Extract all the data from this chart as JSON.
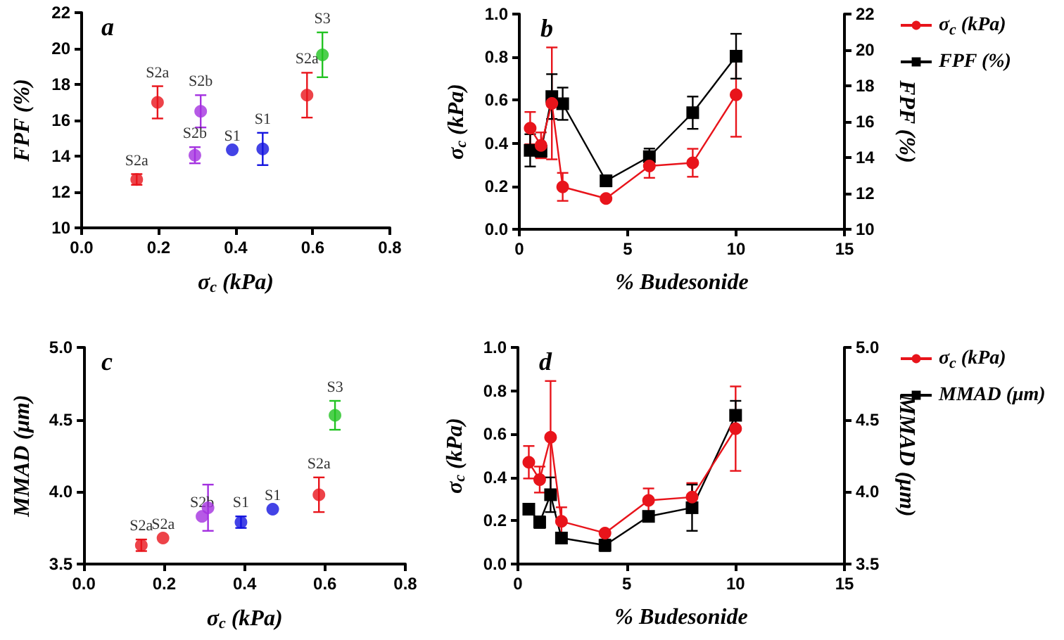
{
  "chart_data": [
    {
      "type": "scatter",
      "title": "a",
      "xlabel": "σ$_{c}$ (kPa)",
      "ylabel": "FPF (%)",
      "x": [
        0.143,
        0.197,
        0.294,
        0.309,
        0.391,
        0.47,
        0.585,
        0.625
      ],
      "values": [
        12.7,
        17.0,
        14.05,
        16.5,
        14.35,
        14.4,
        17.4,
        19.65
      ],
      "colors": [
        "#e8141b",
        "#e8141b",
        "#a431e0",
        "#a431e0",
        "#1414e0",
        "#1414e0",
        "#e8141b",
        "#22c322"
      ],
      "errors": [
        0.3,
        0.9,
        0.45,
        0.9,
        null,
        0.9,
        1.25,
        1.25
      ],
      "xlim": [
        0,
        0.8
      ],
      "xticks": [
        {
          "value": 0,
          "label": "0.0"
        },
        0.2,
        0.4,
        0.6,
        0.8
      ],
      "ylim": [
        10,
        22
      ],
      "yticks": [
        10,
        12,
        14,
        16,
        18,
        20,
        22
      ],
      "marker": "circle",
      "annotations": [
        {
          "text": "S2a",
          "x": 0.143,
          "y": 12.7
        },
        {
          "text": "S2a",
          "x": 0.197,
          "y": 17.0
        },
        {
          "text": "S2b",
          "x": 0.294,
          "y": 14.05
        },
        {
          "text": "S2b",
          "x": 0.309,
          "y": 16.5
        },
        {
          "text": "S1",
          "x": 0.391,
          "y": 14.35
        },
        {
          "text": "S1",
          "x": 0.47,
          "y": 14.4
        },
        {
          "text": "S2a",
          "x": 0.585,
          "y": 17.4
        },
        {
          "text": "S3",
          "x": 0.625,
          "y": 19.65
        }
      ]
    },
    {
      "type": "line",
      "title": "b",
      "xlabel": "% Budesonide",
      "ylabel": "σ$_{c}$ (kPa)",
      "y2label": "FPF (%)",
      "x": [
        0.5,
        1,
        1.5,
        2,
        4,
        6,
        8,
        10
      ],
      "series": [
        {
          "name": "σ$_{c}$ (kPa)",
          "color": "#e8141b",
          "marker": "circle",
          "values": [
            0.47,
            0.39,
            0.585,
            0.197,
            0.143,
            0.294,
            0.309,
            0.625
          ],
          "errors": [
            0.075,
            0.06,
            0.26,
            0.065,
            null,
            0.055,
            0.065,
            0.195
          ]
        },
        {
          "name": "FPF (%)",
          "color": "#000000",
          "marker": "square",
          "axis": "y2",
          "values": [
            14.4,
            14.35,
            17.4,
            17.0,
            12.7,
            14.05,
            16.5,
            19.65
          ],
          "errors": [
            0.9,
            null,
            1.25,
            0.9,
            0.3,
            0.45,
            0.9,
            1.25
          ]
        }
      ],
      "xlim": [
        0,
        15
      ],
      "xticks": [
        0,
        5,
        10,
        15
      ],
      "ylim": [
        0,
        1
      ],
      "yticks": [
        {
          "value": 0,
          "label": "0.0"
        },
        0.2,
        0.4,
        0.6,
        0.8,
        {
          "value": 1,
          "label": "1.0"
        }
      ],
      "y2lim": [
        10,
        22
      ],
      "y2ticks": [
        10,
        12,
        14,
        16,
        18,
        20,
        22
      ],
      "legend": "right"
    },
    {
      "type": "scatter",
      "title": "c",
      "xlabel": "σ$_{c}$ (kPa)",
      "ylabel": "MMAD (μm)",
      "x": [
        0.143,
        0.197,
        0.294,
        0.309,
        0.391,
        0.47,
        0.585,
        0.625
      ],
      "values": [
        3.63,
        3.68,
        3.83,
        3.89,
        3.79,
        3.88,
        3.98,
        4.53
      ],
      "colors": [
        "#e8141b",
        "#e8141b",
        "#a431e0",
        "#a431e0",
        "#1414e0",
        "#1414e0",
        "#e8141b",
        "#22c322"
      ],
      "errors": [
        0.04,
        null,
        null,
        0.16,
        0.04,
        null,
        0.12,
        0.1
      ],
      "xlim": [
        0,
        0.8
      ],
      "xticks": [
        {
          "value": 0,
          "label": "0.0"
        },
        0.2,
        0.4,
        0.6,
        0.8
      ],
      "ylim": [
        3.5,
        5
      ],
      "yticks": [
        3.5,
        {
          "value": 4,
          "label": "4.0"
        },
        4.5,
        {
          "value": 5,
          "label": "5.0"
        }
      ],
      "marker": "circle",
      "annotations": [
        {
          "text": "S2a",
          "x": 0.143,
          "y": 3.63
        },
        {
          "text": "S2a",
          "x": 0.197,
          "y": 3.68
        },
        {
          "text": "S2b",
          "x": 0.294,
          "y": 3.83
        },
        {
          "text": "S1",
          "x": 0.391,
          "y": 3.79
        },
        {
          "text": "S1",
          "x": 0.47,
          "y": 3.88
        },
        {
          "text": "S2a",
          "x": 0.585,
          "y": 3.98
        },
        {
          "text": "S3",
          "x": 0.625,
          "y": 4.53
        }
      ]
    },
    {
      "type": "line",
      "title": "d",
      "xlabel": "% Budesonide",
      "ylabel": "σ$_{c}$ (kPa)",
      "y2label": "MMAD (μm)",
      "x": [
        0.5,
        1,
        1.5,
        2,
        4,
        6,
        8,
        10
      ],
      "series": [
        {
          "name": "σ$_{c}$ (kPa)",
          "color": "#e8141b",
          "marker": "circle",
          "values": [
            0.47,
            0.39,
            0.585,
            0.197,
            0.143,
            0.294,
            0.309,
            0.625
          ],
          "errors": [
            0.075,
            0.06,
            0.26,
            0.065,
            null,
            0.055,
            0.065,
            0.195
          ]
        },
        {
          "name": "MMAD (μm)",
          "color": "#000000",
          "marker": "square",
          "axis": "y2",
          "values": [
            3.88,
            3.79,
            3.98,
            3.68,
            3.63,
            3.83,
            3.89,
            4.53
          ],
          "errors": [
            null,
            0.04,
            0.12,
            null,
            0.04,
            null,
            0.16,
            0.1
          ]
        }
      ],
      "xlim": [
        0,
        15
      ],
      "xticks": [
        0,
        5,
        10,
        15
      ],
      "ylim": [
        0,
        1
      ],
      "yticks": [
        {
          "value": 0,
          "label": "0.0"
        },
        0.2,
        0.4,
        0.6,
        0.8,
        {
          "value": 1,
          "label": "1.0"
        }
      ],
      "y2lim": [
        3.5,
        5
      ],
      "y2ticks": [
        3.5,
        {
          "value": 4,
          "label": "4.0"
        },
        4.5,
        {
          "value": 5,
          "label": "5.0"
        }
      ],
      "legend": "right"
    }
  ]
}
